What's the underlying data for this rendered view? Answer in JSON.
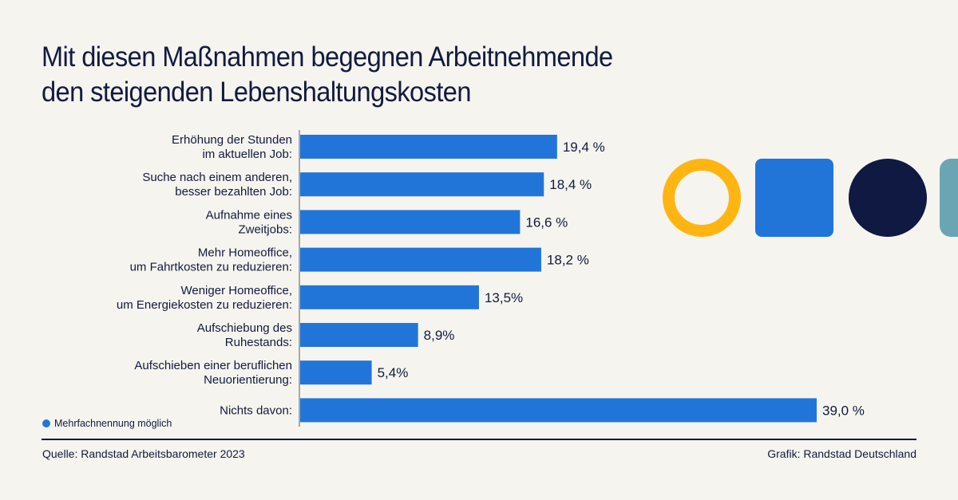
{
  "title_lines": [
    "Mit diesen Maßnahmen begegnen Arbeitnehmende",
    "den steigenden Lebenshaltungskosten"
  ],
  "note": "Mehrfachnennung möglich",
  "source": "Quelle: Randstad Arbeitsbarometer 2023",
  "credit": "Grafik: Randstad Deutschland",
  "colors": {
    "bar": "#2175d9",
    "text": "#121a3e",
    "accent_yellow": "#ffb511",
    "accent_navy": "#0f1941",
    "accent_teal": "#6ba5b4",
    "background": "#f5f4ef"
  },
  "chart_data": {
    "type": "bar",
    "orientation": "horizontal",
    "title": "Mit diesen Maßnahmen begegnen Arbeitnehmende den steigenden Lebenshaltungskosten",
    "categories": [
      [
        "Erhöhung der Stunden",
        "im aktuellen Job:"
      ],
      [
        "Suche nach einem anderen,",
        "besser bezahlten Job:"
      ],
      [
        "Aufnahme eines",
        "Zweitjobs:"
      ],
      [
        "Mehr Homeoffice,",
        "um Fahrtkosten zu reduzieren:"
      ],
      [
        "Weniger Homeoffice,",
        "um Energiekosten zu reduzieren:"
      ],
      [
        "Aufschiebung des",
        "Ruhestands:"
      ],
      [
        "Aufschieben einer beruflichen",
        "Neuorientierung:"
      ],
      [
        "Nichts davon:"
      ]
    ],
    "values": [
      19.4,
      18.4,
      16.6,
      18.2,
      13.5,
      8.9,
      5.4,
      39.0
    ],
    "labels": [
      "19,4 %",
      "18,4 %",
      "16,6 %",
      "18,2 %",
      "13,5%",
      "8,9%",
      "5,4%",
      "39,0 %"
    ],
    "unit": "%",
    "xlim": [
      0,
      39
    ],
    "xlabel": "",
    "ylabel": "",
    "grid": false,
    "legend": "none"
  }
}
